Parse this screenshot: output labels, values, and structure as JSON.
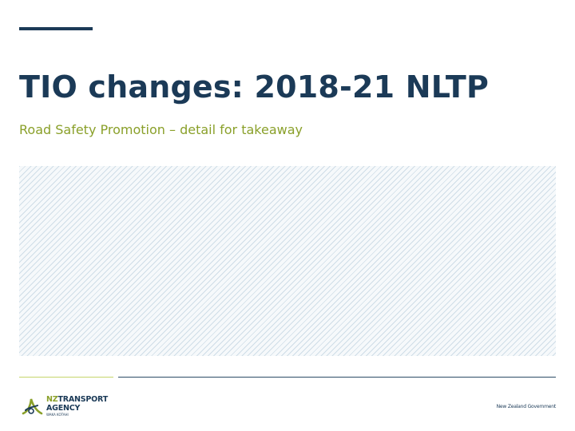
{
  "slide": {
    "title": "TIO changes: 2018-21 NLTP",
    "subtitle": "Road Safety Promotion – detail for takeaway"
  },
  "footer": {
    "logo_prefix": "NZ",
    "logo_line1": "TRANSPORT",
    "logo_line2": "AGENCY",
    "logo_line3": "WAKA KOTAHI",
    "government": "New Zealand Government"
  },
  "colors": {
    "navy": "#1b3a57",
    "green": "#8aa02a",
    "light_green": "#c6d66b",
    "hatch": "#cfdde7"
  }
}
